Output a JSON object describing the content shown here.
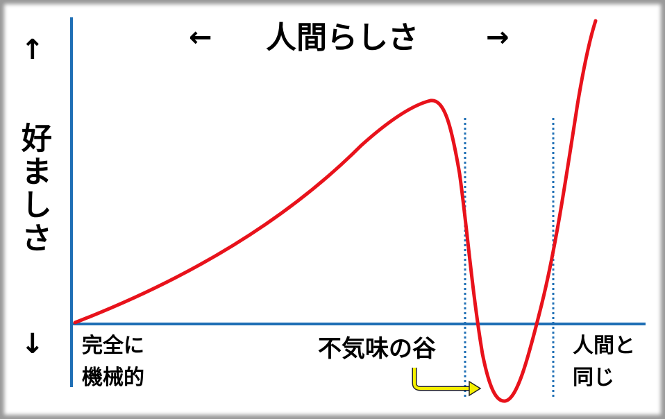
{
  "x_axis": {
    "left_arrow": "←",
    "label": "人間らしさ",
    "right_arrow": "→"
  },
  "y_axis": {
    "up_arrow": "↑",
    "label": "好ましさ",
    "down_arrow": "↓"
  },
  "annotations": {
    "left_end": [
      "完全に",
      "機械的"
    ],
    "valley": "不気味の谷",
    "right_end": [
      "人間と",
      "同じ"
    ]
  }
}
